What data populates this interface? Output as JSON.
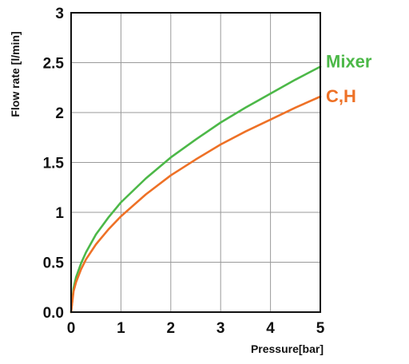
{
  "chart_data": {
    "type": "line",
    "xlabel": "Pressure[bar]",
    "ylabel": "Flow rate [l/min]",
    "xlim": [
      0,
      5
    ],
    "ylim": [
      0,
      3
    ],
    "x_ticks": [
      "0",
      "1",
      "2",
      "3",
      "4",
      "5"
    ],
    "y_ticks": [
      "0.0",
      "0.5",
      "1",
      "1.5",
      "2",
      "2.5",
      "3"
    ],
    "grid": true,
    "legend": "inline-right",
    "x": [
      0,
      0.05,
      0.1,
      0.2,
      0.3,
      0.5,
      0.75,
      1,
      1.5,
      2,
      2.5,
      3,
      3.5,
      4,
      4.5,
      5
    ],
    "series": [
      {
        "name": "Mixer",
        "color": "#4cb848",
        "values": [
          0,
          0.24,
          0.35,
          0.49,
          0.6,
          0.78,
          0.95,
          1.1,
          1.34,
          1.55,
          1.73,
          1.9,
          2.05,
          2.19,
          2.33,
          2.46
        ]
      },
      {
        "name": "C,H",
        "color": "#ee7126",
        "values": [
          0,
          0.21,
          0.3,
          0.43,
          0.53,
          0.68,
          0.83,
          0.96,
          1.18,
          1.37,
          1.53,
          1.68,
          1.81,
          1.93,
          2.05,
          2.16
        ]
      }
    ]
  }
}
